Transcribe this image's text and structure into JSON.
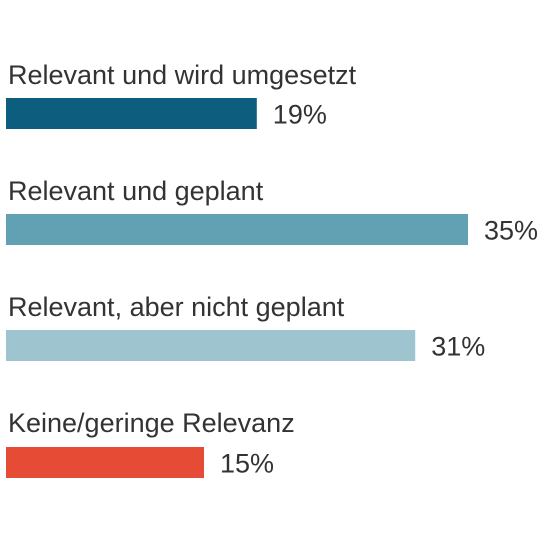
{
  "chart_data": {
    "type": "bar",
    "orientation": "horizontal",
    "categories": [
      "Relevant und wird umgesetzt",
      "Relevant und geplant",
      "Relevant, aber nicht geplant",
      "Keine/geringe Relevanz"
    ],
    "values": [
      19,
      35,
      31,
      15
    ],
    "value_labels": [
      "19%",
      "35%",
      "31%",
      "15%"
    ],
    "colors": [
      "#0d5e7e",
      "#62a0b4",
      "#9ec4d0",
      "#e64b35"
    ],
    "unit": "%",
    "grid": false,
    "legend": "none"
  }
}
